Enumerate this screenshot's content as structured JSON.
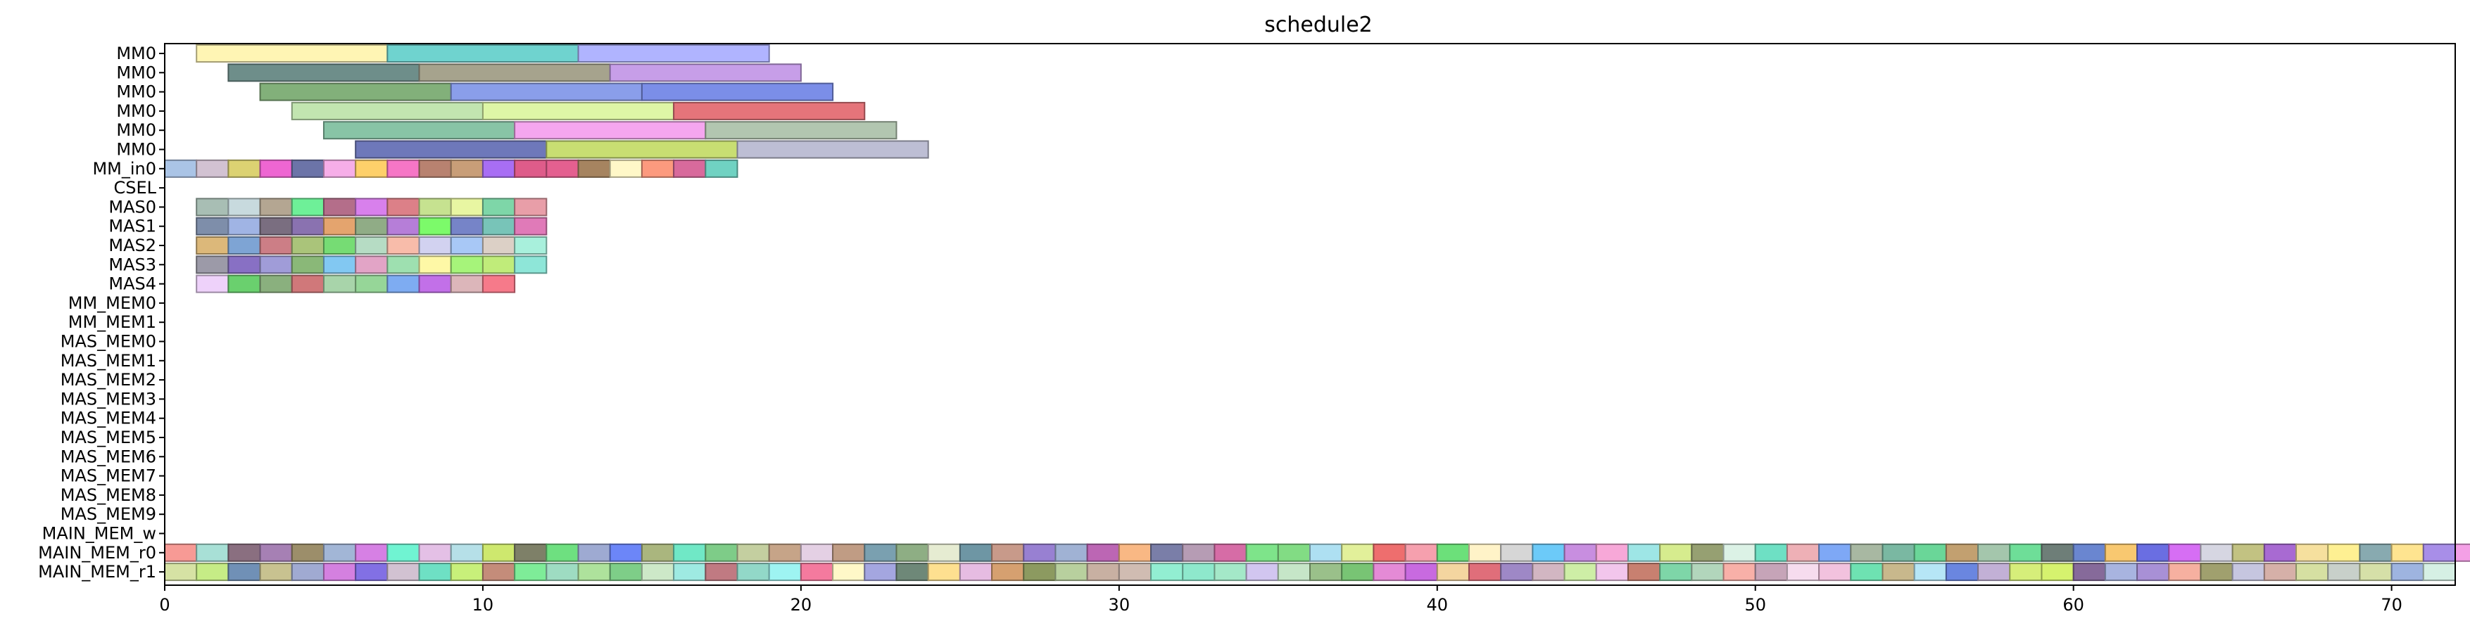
{
  "chart_data": {
    "type": "gantt",
    "title": "schedule2",
    "xlim": [
      0,
      72
    ],
    "x_ticks": [
      0,
      10,
      20,
      30,
      40,
      50,
      60,
      70
    ],
    "rows": [
      "MM0",
      "MM0",
      "MM0",
      "MM0",
      "MM0",
      "MM0",
      "MM_in0",
      "CSEL",
      "MAS0",
      "MAS1",
      "MAS2",
      "MAS3",
      "MAS4",
      "MM_MEM0",
      "MM_MEM1",
      "MAS_MEM0",
      "MAS_MEM1",
      "MAS_MEM2",
      "MAS_MEM3",
      "MAS_MEM4",
      "MAS_MEM5",
      "MAS_MEM6",
      "MAS_MEM7",
      "MAS_MEM8",
      "MAS_MEM9",
      "MAIN_MEM_w",
      "MAIN_MEM_r0",
      "MAIN_MEM_r1"
    ],
    "tasks": [
      {
        "row": 0,
        "start": 1,
        "end": 7,
        "color": "#fff5b4"
      },
      {
        "row": 0,
        "start": 7,
        "end": 13,
        "color": "#6fd3cf"
      },
      {
        "row": 0,
        "start": 13,
        "end": 19,
        "color": "#b0b4ff"
      },
      {
        "row": 1,
        "start": 2,
        "end": 8,
        "color": "#6e8e8a"
      },
      {
        "row": 1,
        "start": 8,
        "end": 14,
        "color": "#a6a38d"
      },
      {
        "row": 1,
        "start": 14,
        "end": 20,
        "color": "#c79ee8"
      },
      {
        "row": 2,
        "start": 3,
        "end": 9,
        "color": "#82b07a"
      },
      {
        "row": 2,
        "start": 9,
        "end": 15,
        "color": "#8a9eea"
      },
      {
        "row": 2,
        "start": 15,
        "end": 21,
        "color": "#7b8ee8"
      },
      {
        "row": 3,
        "start": 4,
        "end": 10,
        "color": "#c2e5b0"
      },
      {
        "row": 3,
        "start": 10,
        "end": 16,
        "color": "#def6a6"
      },
      {
        "row": 3,
        "start": 16,
        "end": 22,
        "color": "#e5747a"
      },
      {
        "row": 4,
        "start": 5,
        "end": 11,
        "color": "#88c4a6"
      },
      {
        "row": 4,
        "start": 11,
        "end": 17,
        "color": "#f5a6ef"
      },
      {
        "row": 4,
        "start": 17,
        "end": 23,
        "color": "#b2c6b0"
      },
      {
        "row": 5,
        "start": 6,
        "end": 12,
        "color": "#6e78ba"
      },
      {
        "row": 5,
        "start": 12,
        "end": 18,
        "color": "#c8de72"
      },
      {
        "row": 5,
        "start": 18,
        "end": 24,
        "color": "#bdbed4"
      },
      {
        "row": 6,
        "start": 0,
        "end": 1,
        "color": "#aac4e6"
      },
      {
        "row": 6,
        "start": 1,
        "end": 2,
        "color": "#d2c2d2"
      },
      {
        "row": 6,
        "start": 2,
        "end": 3,
        "color": "#dcd272"
      },
      {
        "row": 6,
        "start": 3,
        "end": 4,
        "color": "#ee66d2"
      },
      {
        "row": 6,
        "start": 4,
        "end": 5,
        "color": "#6c74a8"
      },
      {
        "row": 6,
        "start": 5,
        "end": 6,
        "color": "#f6aee8"
      },
      {
        "row": 6,
        "start": 6,
        "end": 7,
        "color": "#fed06a"
      },
      {
        "row": 6,
        "start": 7,
        "end": 8,
        "color": "#f676c6"
      },
      {
        "row": 6,
        "start": 8,
        "end": 9,
        "color": "#b88270"
      },
      {
        "row": 6,
        "start": 9,
        "end": 10,
        "color": "#c89e78"
      },
      {
        "row": 6,
        "start": 10,
        "end": 11,
        "color": "#a86ef4"
      },
      {
        "row": 6,
        "start": 11,
        "end": 12,
        "color": "#de5c8a"
      },
      {
        "row": 6,
        "start": 12,
        "end": 13,
        "color": "#e46090"
      },
      {
        "row": 6,
        "start": 13,
        "end": 14,
        "color": "#a68460"
      },
      {
        "row": 6,
        "start": 14,
        "end": 15,
        "color": "#fff8c8"
      },
      {
        "row": 6,
        "start": 15,
        "end": 16,
        "color": "#fc9a7e"
      },
      {
        "row": 6,
        "start": 16,
        "end": 17,
        "color": "#d86a9c"
      },
      {
        "row": 6,
        "start": 17,
        "end": 18,
        "color": "#70d2c2"
      },
      {
        "row": 8,
        "start": 1,
        "end": 2,
        "color": "#a8beb4"
      },
      {
        "row": 8,
        "start": 2,
        "end": 3,
        "color": "#c8dade"
      },
      {
        "row": 8,
        "start": 3,
        "end": 4,
        "color": "#b4a692"
      },
      {
        "row": 8,
        "start": 4,
        "end": 5,
        "color": "#6ef098"
      },
      {
        "row": 8,
        "start": 5,
        "end": 6,
        "color": "#b46e8a"
      },
      {
        "row": 8,
        "start": 6,
        "end": 7,
        "color": "#d880ec"
      },
      {
        "row": 8,
        "start": 7,
        "end": 8,
        "color": "#dc8088"
      },
      {
        "row": 8,
        "start": 8,
        "end": 9,
        "color": "#c6e290"
      },
      {
        "row": 8,
        "start": 9,
        "end": 10,
        "color": "#e8f6a2"
      },
      {
        "row": 8,
        "start": 10,
        "end": 11,
        "color": "#7ed6a8"
      },
      {
        "row": 8,
        "start": 11,
        "end": 12,
        "color": "#e89ea8"
      },
      {
        "row": 9,
        "start": 1,
        "end": 2,
        "color": "#7e8eaa"
      },
      {
        "row": 9,
        "start": 2,
        "end": 3,
        "color": "#a0b4e4"
      },
      {
        "row": 9,
        "start": 3,
        "end": 4,
        "color": "#7a6e80"
      },
      {
        "row": 9,
        "start": 4,
        "end": 5,
        "color": "#8a72b0"
      },
      {
        "row": 9,
        "start": 5,
        "end": 6,
        "color": "#e4a46e"
      },
      {
        "row": 9,
        "start": 6,
        "end": 7,
        "color": "#90ac86"
      },
      {
        "row": 9,
        "start": 7,
        "end": 8,
        "color": "#b67ed8"
      },
      {
        "row": 9,
        "start": 8,
        "end": 9,
        "color": "#7cfa6a"
      },
      {
        "row": 9,
        "start": 9,
        "end": 10,
        "color": "#7684c8"
      },
      {
        "row": 9,
        "start": 10,
        "end": 11,
        "color": "#78c4b8"
      },
      {
        "row": 9,
        "start": 11,
        "end": 12,
        "color": "#e07ab8"
      },
      {
        "row": 10,
        "start": 1,
        "end": 2,
        "color": "#dcb87a"
      },
      {
        "row": 10,
        "start": 2,
        "end": 3,
        "color": "#7ea4d4"
      },
      {
        "row": 10,
        "start": 3,
        "end": 4,
        "color": "#cc7e86"
      },
      {
        "row": 10,
        "start": 4,
        "end": 5,
        "color": "#aac47a"
      },
      {
        "row": 10,
        "start": 5,
        "end": 6,
        "color": "#76dc74"
      },
      {
        "row": 10,
        "start": 6,
        "end": 7,
        "color": "#b6dcc4"
      },
      {
        "row": 10,
        "start": 7,
        "end": 8,
        "color": "#f8bcaa"
      },
      {
        "row": 10,
        "start": 8,
        "end": 9,
        "color": "#d2d2f0"
      },
      {
        "row": 10,
        "start": 9,
        "end": 10,
        "color": "#a8c8f6"
      },
      {
        "row": 10,
        "start": 10,
        "end": 11,
        "color": "#dcd0c6"
      },
      {
        "row": 10,
        "start": 11,
        "end": 12,
        "color": "#a8f0dc"
      },
      {
        "row": 11,
        "start": 1,
        "end": 2,
        "color": "#9c9aa8"
      },
      {
        "row": 11,
        "start": 2,
        "end": 3,
        "color": "#8870c4"
      },
      {
        "row": 11,
        "start": 3,
        "end": 4,
        "color": "#a09cd8"
      },
      {
        "row": 11,
        "start": 4,
        "end": 5,
        "color": "#8ab878"
      },
      {
        "row": 11,
        "start": 5,
        "end": 6,
        "color": "#82c8f2"
      },
      {
        "row": 11,
        "start": 6,
        "end": 7,
        "color": "#e2a4c6"
      },
      {
        "row": 11,
        "start": 7,
        "end": 8,
        "color": "#9ee0b0"
      },
      {
        "row": 11,
        "start": 8,
        "end": 9,
        "color": "#fef8a6"
      },
      {
        "row": 11,
        "start": 9,
        "end": 10,
        "color": "#a6f47a"
      },
      {
        "row": 11,
        "start": 10,
        "end": 11,
        "color": "#c0ec7a"
      },
      {
        "row": 11,
        "start": 11,
        "end": 12,
        "color": "#8ee6d8"
      },
      {
        "row": 12,
        "start": 1,
        "end": 2,
        "color": "#eed2fa"
      },
      {
        "row": 12,
        "start": 2,
        "end": 3,
        "color": "#6ad06e"
      },
      {
        "row": 12,
        "start": 3,
        "end": 4,
        "color": "#8ab07e"
      },
      {
        "row": 12,
        "start": 4,
        "end": 5,
        "color": "#d0787a"
      },
      {
        "row": 12,
        "start": 5,
        "end": 6,
        "color": "#a8d4aa"
      },
      {
        "row": 12,
        "start": 6,
        "end": 7,
        "color": "#96d698"
      },
      {
        "row": 12,
        "start": 7,
        "end": 8,
        "color": "#7eacf2"
      },
      {
        "row": 12,
        "start": 8,
        "end": 9,
        "color": "#c270e8"
      },
      {
        "row": 12,
        "start": 9,
        "end": 10,
        "color": "#dcb6ba"
      },
      {
        "row": 12,
        "start": 10,
        "end": 11,
        "color": "#f67a8a"
      }
    ],
    "r0_colors": [
      "#f79a95",
      "#a8e0d6",
      "#8a6f80",
      "#a680b4",
      "#9c8e6a",
      "#a2b6d6",
      "#d680e4",
      "#70f4d2",
      "#e4c0e6",
      "#b6e0e8",
      "#cee86e",
      "#7e8068",
      "#6ee080",
      "#9eaad2",
      "#6c86f8",
      "#aab67e",
      "#70e8c6",
      "#7ecc88",
      "#c4cfa0",
      "#c6a488",
      "#e4d0e4",
      "#c09c84",
      "#7aa0b0",
      "#8eae84",
      "#e6ecd2",
      "#6e96a4",
      "#c89a8a",
      "#9880d2",
      "#a0b2d4",
      "#bc66b4",
      "#f9b884",
      "#7a7ea8",
      "#b69cb4",
      "#d66ca6",
      "#7ee48a",
      "#82dc84",
      "#aee0f2",
      "#e2f09a",
      "#ee6e6e",
      "#f6a0ae",
      "#6ce07a",
      "#fff3c8",
      "#d6d6d6",
      "#6ccaf8",
      "#c88ee0",
      "#f7a8d8",
      "#9ee6e6",
      "#d6ec8e",
      "#96a072",
      "#dcf2e6",
      "#6ee0c4",
      "#eeb0b6",
      "#7ea8f6",
      "#a8b8a2",
      "#7ab8a2",
      "#6ad698",
      "#c2a070",
      "#a4c6ac",
      "#6ede98",
      "#6e7e78",
      "#6a86d0",
      "#f8c870",
      "#6a6ee2",
      "#d66ef4",
      "#d6d6e2",
      "#c2c282",
      "#a86ad2",
      "#f6e09e",
      "#fef092",
      "#88aab0",
      "#fee490",
      "#a88ee8",
      "#f4a0e6",
      "#a8da9a"
    ],
    "r1_colors": [
      "#d6e2a4",
      "#c6ec86",
      "#7090b6",
      "#c8c290",
      "#a0aad2",
      "#d480e0",
      "#8270e4",
      "#d2c2d2",
      "#6ee0c4",
      "#c8f07a",
      "#c48c7a",
      "#7eec98",
      "#9edcc2",
      "#aee29c",
      "#7ece88",
      "#cde8c8",
      "#9eeae2",
      "#c07a82",
      "#92d8c8",
      "#9ef4f2",
      "#f47a9e",
      "#fff8c8",
      "#a4a6e0",
      "#6e8878",
      "#fee090",
      "#e6bce2",
      "#d6a070",
      "#8c9a60",
      "#b8d09e",
      "#c8b0a2",
      "#d0bcb2",
      "#92eed2",
      "#8ee8cc",
      "#a4e8c8",
      "#d2c6f0",
      "#c6e6c8",
      "#9ac08a",
      "#78c474",
      "#e48ad6",
      "#c86ae0",
      "#f4d6a0",
      "#e06e7a",
      "#9e88c6",
      "#d2b6c2",
      "#ceeea6",
      "#f2c6ec",
      "#c88070",
      "#7ed6a8",
      "#b2d6bc",
      "#f8b0a8",
      "#c6a4b8",
      "#f6dcee",
      "#f2c2de",
      "#6ee2b2",
      "#c8b88c",
      "#b6e6f6",
      "#6a86e0",
      "#c2b0d6",
      "#d6ee7a",
      "#d6f26e",
      "#866a9a",
      "#a8b4e0",
      "#a890d6",
      "#f6b0a0",
      "#a0a06e",
      "#c6c6e0",
      "#d6b0a8",
      "#d6e0a2",
      "#c8d0ca",
      "#d6e0a8",
      "#9eb4e0",
      "#d6f0e4"
    ],
    "edge_darkness": 0.65
  }
}
